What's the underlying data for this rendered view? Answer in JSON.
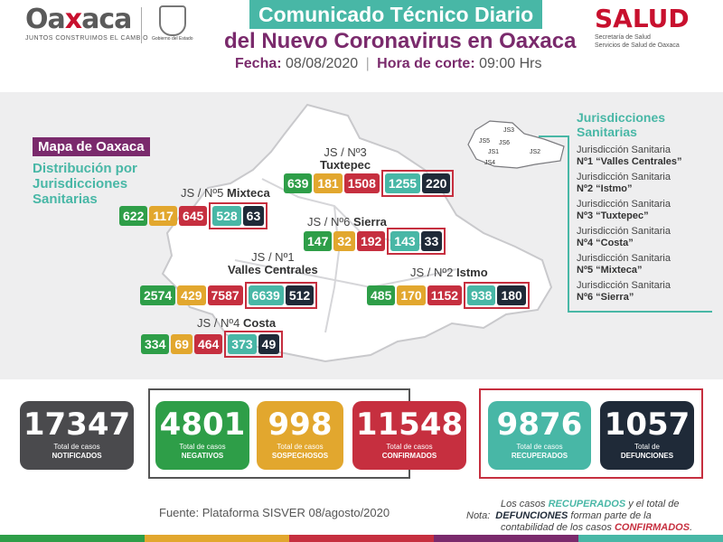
{
  "header": {
    "logo_text_1": "Oa",
    "logo_text_x": "x",
    "logo_text_2": "aca",
    "logo_sub": "JUNTOS CONSTRUIMOS EL CAMBIO",
    "seal_caption": "Gobierno del Estado",
    "title": "Comunicado Técnico Diario",
    "subtitle": "del Nuevo Coronavirus en Oaxaca",
    "fecha_label": "Fecha:",
    "fecha_value": "08/08/2020",
    "separator": "|",
    "hora_label": "Hora de corte:",
    "hora_value": "09:00 Hrs",
    "salud": "SALUD",
    "salud_sub1": "Secretaría de Salud",
    "salud_sub2": "Servicios de Salud de Oaxaca"
  },
  "map": {
    "title": "Mapa de Oaxaca",
    "sub1": "Distribución por",
    "sub2": "Jurisdicciones",
    "sub3": "Sanitarias"
  },
  "jurisdictions_legend": {
    "title1": "Jurisdicciones",
    "title2": "Sanitarias",
    "items": [
      {
        "line1": "Jurisdicción Sanitaria",
        "line2": "Nº1 “Valles Centrales”"
      },
      {
        "line1": "Jurisdicción Sanitaria",
        "line2": "Nº2 “Istmo”"
      },
      {
        "line1": "Jurisdicción Sanitaria",
        "line2": "Nº3 “Tuxtepec”"
      },
      {
        "line1": "Jurisdicción Sanitaria",
        "line2": "Nº4 “Costa”"
      },
      {
        "line1": "Jurisdicción Sanitaria",
        "line2": "Nº5 “Mixteca”"
      },
      {
        "line1": "Jurisdicción Sanitaria",
        "line2": "Nº6 “Sierra”"
      }
    ],
    "mini_map_labels": [
      "JS3",
      "JS5",
      "JS6",
      "JS1",
      "JS4",
      "JS2"
    ]
  },
  "regions": [
    {
      "label1": "JS / Nº3",
      "label2": "Tuxtepec",
      "values": [
        "639",
        "181",
        "1508",
        "1255",
        "220"
      ]
    },
    {
      "label1": "JS / Nº5",
      "label2": "Mixteca",
      "values": [
        "622",
        "117",
        "645",
        "528",
        "63"
      ]
    },
    {
      "label1": "JS / Nº6",
      "label2": "Sierra",
      "values": [
        "147",
        "32",
        "192",
        "143",
        "33"
      ]
    },
    {
      "label1": "JS / Nº1",
      "label2": "Valles Centrales",
      "values": [
        "2574",
        "429",
        "7587",
        "6639",
        "512"
      ]
    },
    {
      "label1": "JS / Nº2",
      "label2": "Istmo",
      "values": [
        "485",
        "170",
        "1152",
        "938",
        "180"
      ]
    },
    {
      "label1": "JS / Nº4",
      "label2": "Costa",
      "values": [
        "334",
        "69",
        "464",
        "373",
        "49"
      ]
    }
  ],
  "totals": [
    {
      "value": "17347",
      "line1": "Total de casos",
      "line2": "NOTIFICADOS",
      "color": "#4a4a4d"
    },
    {
      "value": "4801",
      "line1": "Total de casos",
      "line2": "NEGATIVOS",
      "color": "#2e9e48"
    },
    {
      "value": "998",
      "line1": "Total de casos",
      "line2": "SOSPECHOSOS",
      "color": "#e2a72e"
    },
    {
      "value": "11548",
      "line1": "Total de casos",
      "line2": "CONFIRMADOS",
      "color": "#c62f3f"
    },
    {
      "value": "9876",
      "line1": "Total de casos",
      "line2": "RECUPERADOS",
      "color": "#48b7a6"
    },
    {
      "value": "1057",
      "line1": "Total de",
      "line2": "DEFUNCIONES",
      "color": "#1f2a38"
    }
  ],
  "footer": {
    "source": "Fuente: Plataforma SISVER 08/agosto/2020",
    "note_label": "Nota:",
    "note_l1a": "Los casos ",
    "note_l1b": "RECUPERADOS",
    "note_l1c": " y el total de",
    "note_l2a": "DEFUNCIONES",
    "note_l2b": " forman parte de la",
    "note_l3a": "contabilidad de los casos ",
    "note_l3b": "CONFIRMADOS",
    "note_l3c": "."
  },
  "colors": {
    "teal": "#48b7a6",
    "purple": "#7a2a6c",
    "red": "#c62f3f",
    "green": "#2e9e48",
    "yellow": "#e2a72e",
    "navy": "#1f2a38",
    "gray": "#4a4a4d"
  }
}
